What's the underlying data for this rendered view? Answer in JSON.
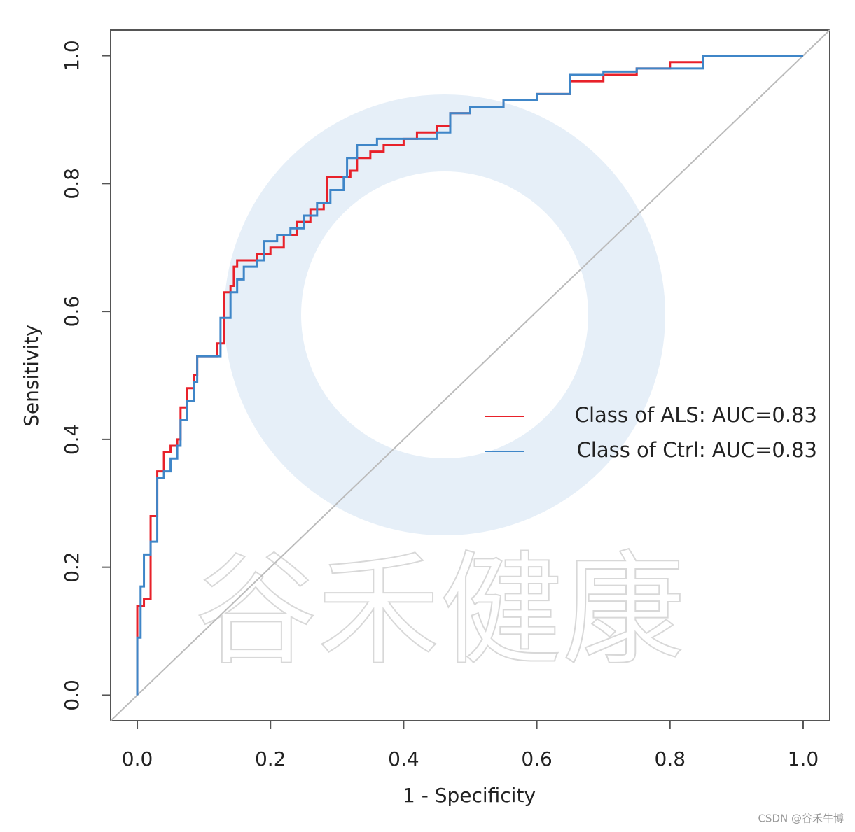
{
  "chart_data": {
    "type": "line",
    "step": true,
    "x_label": "1 - Specificity",
    "y_label": "Sensitivity",
    "xlim": [
      -0.04,
      1.04
    ],
    "ylim": [
      -0.04,
      1.04
    ],
    "xticks": [
      {
        "value": 0,
        "label": "0.0"
      },
      0.2,
      0.4,
      0.6,
      0.8,
      {
        "value": 1,
        "label": "1.0"
      }
    ],
    "yticks": [
      {
        "value": 0,
        "label": "0.0"
      },
      0.2,
      0.4,
      0.6,
      0.8,
      {
        "value": 1,
        "label": "1.0"
      }
    ],
    "reference_line": true,
    "legend": "right",
    "watermark": "谷禾健康",
    "credit": "CSDN @谷禾牛博",
    "series": [
      {
        "name": "Class of ALS: AUC=0.83",
        "color": "#e8212a",
        "x": [
          0,
          0,
          0,
          0.01,
          0.02,
          0.02,
          0.03,
          0.03,
          0.04,
          0.04,
          0.05,
          0.06,
          0.065,
          0.075,
          0.085,
          0.09,
          0.11,
          0.12,
          0.13,
          0.14,
          0.145,
          0.15,
          0.17,
          0.18,
          0.2,
          0.22,
          0.24,
          0.26,
          0.28,
          0.285,
          0.3,
          0.32,
          0.33,
          0.35,
          0.37,
          0.4,
          0.42,
          0.45,
          0.47,
          0.5,
          0.55,
          0.6,
          0.65,
          0.7,
          0.75,
          0.8,
          0.85,
          1
        ],
        "values": [
          0,
          0.09,
          0.14,
          0.15,
          0.16,
          0.28,
          0.28,
          0.35,
          0.35,
          0.38,
          0.39,
          0.4,
          0.45,
          0.48,
          0.5,
          0.53,
          0.53,
          0.55,
          0.63,
          0.64,
          0.67,
          0.68,
          0.68,
          0.69,
          0.7,
          0.72,
          0.74,
          0.76,
          0.77,
          0.81,
          0.81,
          0.82,
          0.84,
          0.85,
          0.86,
          0.87,
          0.88,
          0.89,
          0.91,
          0.92,
          0.93,
          0.94,
          0.96,
          0.97,
          0.98,
          0.99,
          1,
          1
        ]
      },
      {
        "name": "Class of Ctrl: AUC=0.83",
        "color": "#3f86c8",
        "x": [
          0,
          0,
          0.005,
          0.01,
          0.02,
          0.03,
          0.03,
          0.04,
          0.05,
          0.06,
          0.065,
          0.075,
          0.085,
          0.09,
          0.11,
          0.125,
          0.14,
          0.15,
          0.16,
          0.18,
          0.19,
          0.21,
          0.23,
          0.25,
          0.27,
          0.29,
          0.31,
          0.315,
          0.33,
          0.36,
          0.4,
          0.45,
          0.47,
          0.5,
          0.55,
          0.6,
          0.65,
          0.7,
          0.75,
          0.8,
          0.85,
          1
        ],
        "values": [
          0,
          0.09,
          0.17,
          0.22,
          0.24,
          0.3,
          0.34,
          0.35,
          0.37,
          0.39,
          0.43,
          0.46,
          0.49,
          0.53,
          0.53,
          0.59,
          0.63,
          0.65,
          0.67,
          0.68,
          0.71,
          0.72,
          0.73,
          0.75,
          0.77,
          0.79,
          0.81,
          0.84,
          0.86,
          0.87,
          0.87,
          0.88,
          0.91,
          0.92,
          0.93,
          0.94,
          0.97,
          0.975,
          0.98,
          0.98,
          1,
          1
        ]
      }
    ]
  }
}
